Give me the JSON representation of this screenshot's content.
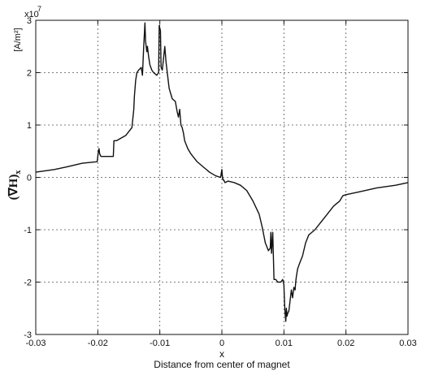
{
  "chart_data": {
    "type": "line",
    "xlabel": "x",
    "xlabel_sub": "Distance from center of magnet",
    "ylabel": "(∇H)",
    "ylabel_subscript": "x",
    "yunit": "[A/m²]",
    "yexponent_base": "x10",
    "yexponent_power": "7",
    "xlim": [
      -0.03,
      0.03
    ],
    "ylim": [
      -3,
      3
    ],
    "xticks": [
      -0.03,
      -0.02,
      -0.01,
      0,
      0.01,
      0.02,
      0.03
    ],
    "xtick_labels": [
      "-0.03",
      "-0.02",
      "-0.01",
      "0",
      "0.01",
      "0.02",
      "0.03"
    ],
    "yticks": [
      -3,
      -2,
      -1,
      0,
      1,
      2,
      3
    ],
    "ytick_labels": [
      "-3",
      "-2",
      "-1",
      "0",
      "1",
      "2",
      "3"
    ],
    "grid": true,
    "series": [
      {
        "x": [
          -0.03,
          -0.027,
          -0.025,
          -0.0225,
          -0.0201,
          -0.0199,
          -0.0198,
          -0.0197,
          -0.0195,
          -0.018,
          -0.0175,
          -0.0174,
          -0.017,
          -0.0155,
          -0.0145,
          -0.0142,
          -0.0141,
          -0.014,
          -0.0139,
          -0.0137,
          -0.0134,
          -0.013,
          -0.0128,
          -0.0126,
          -0.0124,
          -0.0123,
          -0.0121,
          -0.012,
          -0.0118,
          -0.0116,
          -0.0113,
          -0.011,
          -0.0105,
          -0.0102,
          -0.0101,
          -0.0099,
          -0.0098,
          -0.0096,
          -0.0092,
          -0.009,
          -0.0088,
          -0.0086,
          -0.0085,
          -0.008,
          -0.0075,
          -0.0072,
          -0.007,
          -0.0068,
          -0.0066,
          -0.0064,
          -0.0062,
          -0.006,
          -0.0055,
          -0.005,
          -0.004,
          -0.003,
          -0.002,
          -0.001,
          -0.0002,
          0.0,
          0.0001,
          0.0002,
          0.0003,
          0.0005,
          0.001,
          0.002,
          0.003,
          0.004,
          0.005,
          0.006,
          0.0065,
          0.007,
          0.0075,
          0.0078,
          0.0079,
          0.008,
          0.0081,
          0.0082,
          0.0083,
          0.0084,
          0.0085,
          0.0087,
          0.009,
          0.0095,
          0.0098,
          0.01,
          0.0101,
          0.0102,
          0.0103,
          0.0104,
          0.0105,
          0.0106,
          0.0108,
          0.0112,
          0.0114,
          0.0116,
          0.0118,
          0.0119,
          0.012,
          0.0122,
          0.0125,
          0.013,
          0.0135,
          0.014,
          0.015,
          0.016,
          0.017,
          0.018,
          0.019,
          0.0195,
          0.02,
          0.022,
          0.025,
          0.028,
          0.03
        ],
        "y": [
          0.1,
          0.15,
          0.2,
          0.27,
          0.3,
          0.5,
          0.55,
          0.45,
          0.4,
          0.4,
          0.4,
          0.7,
          0.7,
          0.8,
          0.95,
          1.3,
          1.55,
          1.7,
          1.85,
          2.0,
          2.05,
          2.1,
          1.95,
          2.5,
          2.95,
          2.6,
          2.4,
          2.5,
          2.3,
          2.15,
          2.05,
          2.0,
          1.95,
          2.0,
          2.9,
          2.8,
          2.1,
          2.05,
          2.5,
          2.2,
          2.0,
          1.8,
          1.7,
          1.5,
          1.45,
          1.25,
          1.15,
          1.3,
          1.0,
          0.95,
          0.85,
          0.7,
          0.55,
          0.45,
          0.3,
          0.2,
          0.1,
          0.03,
          0.0,
          0.15,
          0.0,
          -0.05,
          -0.05,
          -0.1,
          -0.07,
          -0.1,
          -0.15,
          -0.25,
          -0.45,
          -0.7,
          -0.95,
          -1.25,
          -1.4,
          -1.35,
          -1.05,
          -1.45,
          -1.25,
          -1.05,
          -1.5,
          -1.95,
          -1.95,
          -1.95,
          -2.0,
          -2.0,
          -1.95,
          -2.05,
          -2.4,
          -2.6,
          -2.75,
          -2.5,
          -2.65,
          -2.6,
          -2.55,
          -2.15,
          -2.3,
          -2.1,
          -2.15,
          -2.0,
          -1.9,
          -1.75,
          -1.65,
          -1.5,
          -1.25,
          -1.1,
          -1.0,
          -0.85,
          -0.7,
          -0.55,
          -0.45,
          -0.35,
          -0.33,
          -0.28,
          -0.2,
          -0.15,
          -0.1
        ]
      }
    ]
  }
}
